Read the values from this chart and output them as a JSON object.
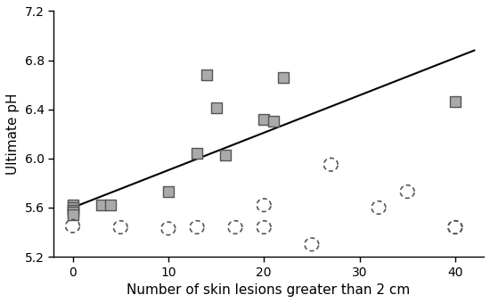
{
  "title": "",
  "xlabel": "Number of skin lesions greater than 2 cm",
  "ylabel": "Ultimate pH",
  "xlim": [
    -2,
    43
  ],
  "ylim": [
    5.2,
    7.2
  ],
  "xticks": [
    0,
    10,
    20,
    30,
    40
  ],
  "yticks": [
    5.2,
    5.6,
    6.0,
    6.4,
    6.8,
    7.2
  ],
  "squares_x": [
    0,
    0,
    0,
    0,
    0,
    3,
    4,
    10,
    13,
    14,
    15,
    16,
    20,
    21,
    22,
    40
  ],
  "squares_y": [
    5.62,
    5.6,
    5.58,
    5.56,
    5.54,
    5.62,
    5.62,
    5.73,
    6.04,
    6.68,
    6.41,
    6.03,
    6.32,
    6.3,
    6.66,
    6.46
  ],
  "circles_x": [
    0,
    5,
    10,
    13,
    17,
    20,
    20,
    25,
    27,
    32,
    35,
    40,
    40
  ],
  "circles_y": [
    5.45,
    5.44,
    5.43,
    5.44,
    5.44,
    5.62,
    5.44,
    5.3,
    5.95,
    5.6,
    5.73,
    5.44,
    5.44
  ],
  "line_x": [
    0,
    42
  ],
  "line_y": [
    5.6,
    6.88
  ],
  "square_color": "#aaaaaa",
  "square_edgecolor": "#555555",
  "circle_edgecolor": "#555555",
  "line_color": "#000000",
  "bg_color": "#ffffff",
  "circle_markersize": 10,
  "square_markersize": 9
}
